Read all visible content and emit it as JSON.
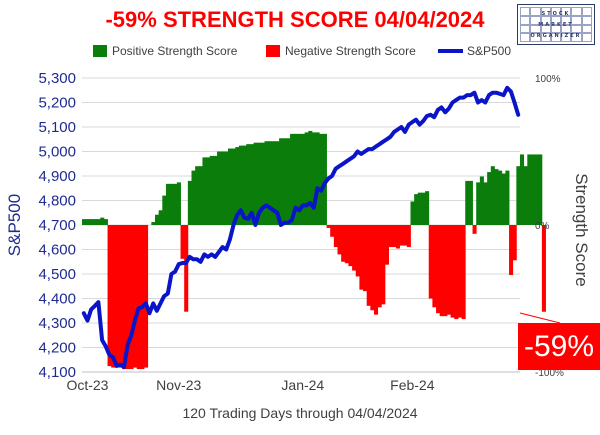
{
  "chart_data": {
    "type": "bar+line",
    "title": "-59% STRENGTH SCORE 04/04/2024",
    "xlabel": "120 Trading Days through 04/04/2024",
    "ylabel_left": "S&P500",
    "ylabel_right": "Strength Score",
    "x_tick_labels": [
      "Oct-23",
      "Nov-23",
      "Jan-24",
      "Feb-24"
    ],
    "x_tick_days": [
      1,
      26,
      60,
      90
    ],
    "ylim_left": [
      4100,
      5300
    ],
    "y_ticks_left": [
      4100,
      4200,
      4300,
      4400,
      4500,
      4600,
      4700,
      4800,
      4900,
      5000,
      5100,
      5200,
      5300
    ],
    "y_ticks_left_labels": [
      "4,100",
      "4,200",
      "4,300",
      "4,400",
      "4,500",
      "4,600",
      "4,700",
      "4,800",
      "4,900",
      "5,000",
      "5,100",
      "5,200",
      "5,300"
    ],
    "ylim_right": [
      -100,
      100
    ],
    "y_ticks_right_labels": [
      "100%",
      "0%",
      "-100%"
    ],
    "n_days": 120,
    "legend": {
      "positive": "Positive Strength Score",
      "negative": "Negative Strength Score",
      "sp500": "S&P500",
      "placement": "top"
    },
    "colors": {
      "positive": "#0a7d0a",
      "negative": "#ff0000",
      "sp500": "#0a14c8",
      "title": "#ff0000"
    },
    "strength_score": [
      4,
      4,
      4,
      4,
      4,
      5,
      4,
      -96,
      -97,
      -97,
      -97,
      -98,
      -98,
      -98,
      -97,
      -98,
      -98,
      -97,
      0,
      2,
      7,
      10,
      20,
      28,
      28,
      28,
      29,
      -23,
      -59,
      30,
      37,
      40,
      40,
      46,
      46,
      47,
      47,
      50,
      50,
      50,
      52,
      52,
      53,
      54,
      54,
      55,
      55,
      56,
      56,
      56,
      57,
      57,
      57,
      57,
      59,
      59,
      59,
      62,
      62,
      62,
      62,
      63,
      64,
      63,
      63,
      62,
      62,
      -2,
      -8,
      -15,
      -20,
      -25,
      -26,
      -28,
      -31,
      -35,
      -44,
      -45,
      -55,
      -58,
      -61,
      -56,
      -54,
      -27,
      -15,
      -15,
      -16,
      -14,
      -14,
      -15,
      16,
      21,
      22,
      22,
      23,
      -50,
      -56,
      -60,
      -62,
      -62,
      -61,
      -63,
      -64,
      -63,
      -64,
      30,
      30,
      -6,
      29,
      33,
      29,
      36,
      40,
      38,
      37,
      35,
      37,
      -34,
      -24,
      40,
      48,
      40,
      48,
      48,
      48,
      48,
      -59
    ],
    "sp500": [
      4340,
      4310,
      4355,
      4370,
      4385,
      4230,
      4205,
      4170,
      4160,
      4125,
      4130,
      4120,
      4210,
      4250,
      4310,
      4360,
      4365,
      4380,
      4340,
      4380,
      4350,
      4380,
      4410,
      4420,
      4500,
      4510,
      4540,
      4545,
      4545,
      4570,
      4560,
      4560,
      4550,
      4580,
      4570,
      4580,
      4570,
      4590,
      4610,
      4600,
      4640,
      4700,
      4740,
      4760,
      4730,
      4725,
      4750,
      4700,
      4750,
      4770,
      4780,
      4770,
      4760,
      4750,
      4700,
      4710,
      4710,
      4720,
      4770,
      4760,
      4780,
      4780,
      4790,
      4770,
      4850,
      4840,
      4870,
      4890,
      4900,
      4930,
      4940,
      4950,
      4960,
      4970,
      4980,
      5000,
      4990,
      5000,
      5010,
      5010,
      5020,
      5030,
      5040,
      5050,
      5060,
      5080,
      5090,
      5100,
      5080,
      5110,
      5120,
      5130,
      5110,
      5125,
      5145,
      5150,
      5140,
      5170,
      5180,
      5160,
      5175,
      5200,
      5210,
      5220,
      5220,
      5230,
      5230,
      5240,
      5200,
      5210,
      5200,
      5230,
      5240,
      5240,
      5235,
      5230,
      5260,
      5245,
      5200,
      5150
    ]
  },
  "labels": {
    "logo_line_1": "STOCK",
    "logo_line_2": "MARKET",
    "logo_line_3": "ORGANIZER",
    "badge": "-59%"
  }
}
